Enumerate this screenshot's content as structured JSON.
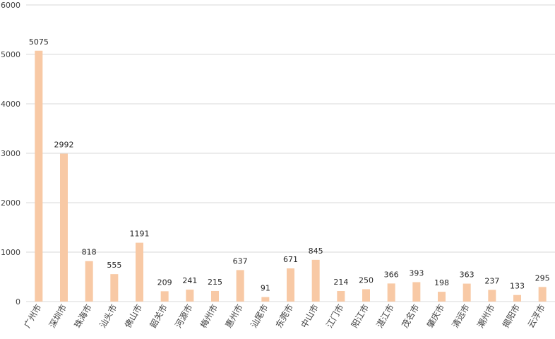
{
  "chart_data": {
    "type": "bar",
    "title": "",
    "xlabel": "",
    "ylabel": "",
    "ylim": [
      0,
      6000
    ],
    "yticks": [
      0,
      1000,
      2000,
      3000,
      4000,
      5000,
      6000
    ],
    "grid": true,
    "legend": "none",
    "categories": [
      "广州市",
      "深圳市",
      "珠海市",
      "汕头市",
      "佛山市",
      "韶关市",
      "河源市",
      "梅州市",
      "惠州市",
      "汕尾市",
      "东莞市",
      "中山市",
      "江门市",
      "阳江市",
      "湛江市",
      "茂名市",
      "肇庆市",
      "清远市",
      "潮州市",
      "揭阳市",
      "云浮市"
    ],
    "values": [
      5075,
      2992,
      818,
      555,
      1191,
      209,
      241,
      215,
      637,
      91,
      671,
      845,
      214,
      250,
      366,
      393,
      198,
      363,
      237,
      133,
      295
    ],
    "colors": {
      "bar": "#F8C9A5",
      "grid": "#D9D9D9",
      "axis_text": "#404040",
      "label_text": "#262626"
    }
  }
}
